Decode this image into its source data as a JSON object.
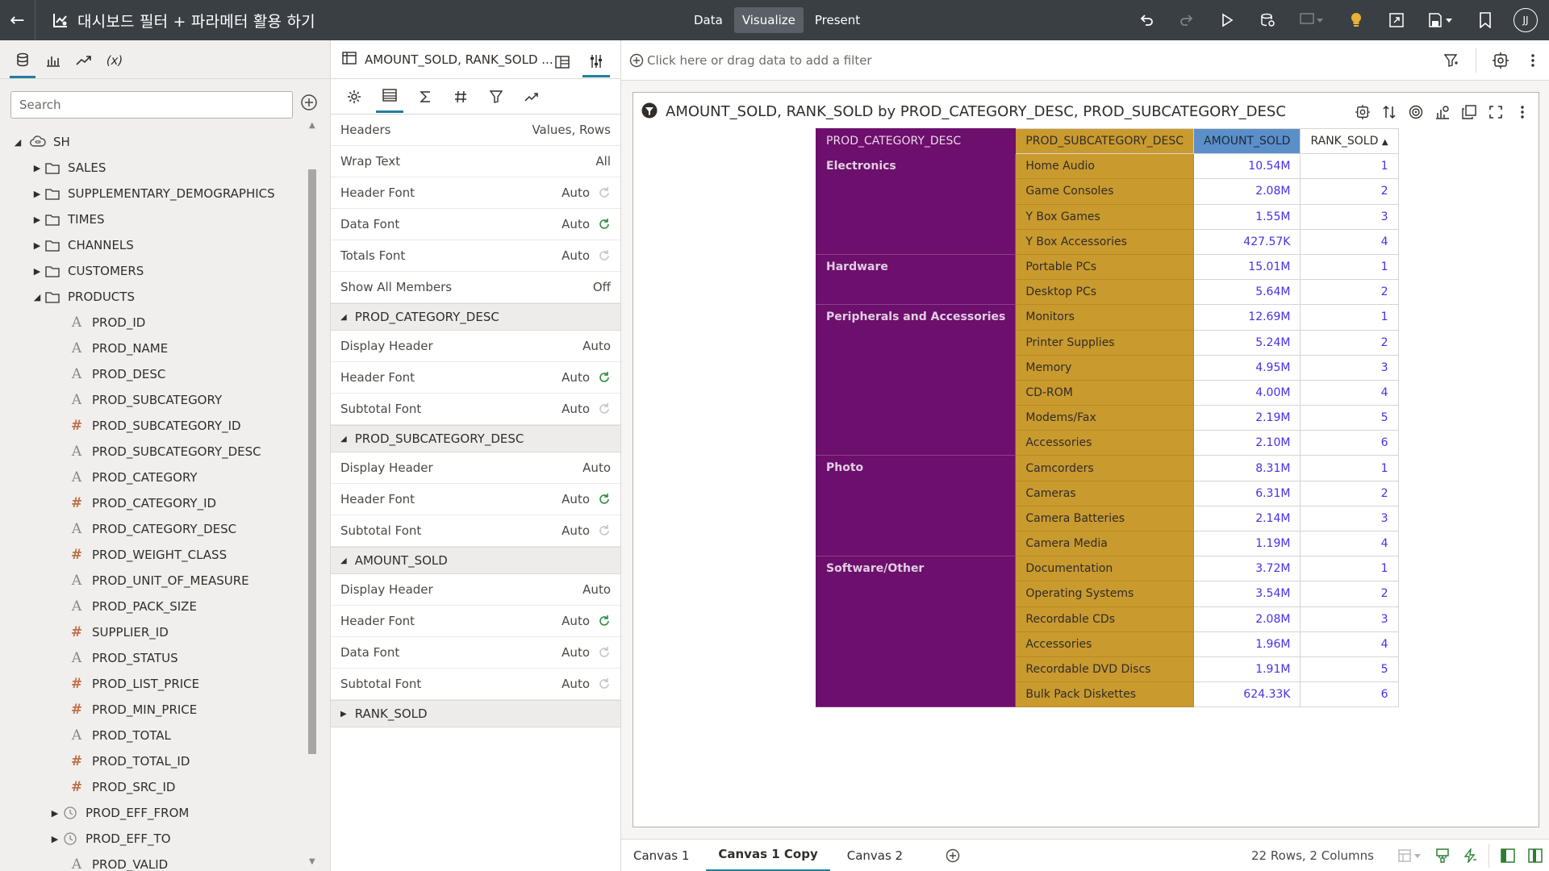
{
  "header": {
    "title": "대시보드 필터 + 파라메터 활용 하기",
    "modes": [
      "Data",
      "Visualize",
      "Present"
    ],
    "active_mode": "Visualize",
    "user_initials": "JJ"
  },
  "data_panel": {
    "search_placeholder": "Search",
    "root": "SH",
    "folders": [
      "SALES",
      "SUPPLEMENTARY_DEMOGRAPHICS",
      "TIMES",
      "CHANNELS",
      "CUSTOMERS",
      "PRODUCTS"
    ],
    "columns": [
      {
        "name": "PROD_ID",
        "kind": "attr"
      },
      {
        "name": "PROD_NAME",
        "kind": "attr"
      },
      {
        "name": "PROD_DESC",
        "kind": "attr"
      },
      {
        "name": "PROD_SUBCATEGORY",
        "kind": "attr"
      },
      {
        "name": "PROD_SUBCATEGORY_ID",
        "kind": "num"
      },
      {
        "name": "PROD_SUBCATEGORY_DESC",
        "kind": "attr"
      },
      {
        "name": "PROD_CATEGORY",
        "kind": "attr"
      },
      {
        "name": "PROD_CATEGORY_ID",
        "kind": "num"
      },
      {
        "name": "PROD_CATEGORY_DESC",
        "kind": "attr"
      },
      {
        "name": "PROD_WEIGHT_CLASS",
        "kind": "num"
      },
      {
        "name": "PROD_UNIT_OF_MEASURE",
        "kind": "attr"
      },
      {
        "name": "PROD_PACK_SIZE",
        "kind": "attr"
      },
      {
        "name": "SUPPLIER_ID",
        "kind": "num"
      },
      {
        "name": "PROD_STATUS",
        "kind": "attr"
      },
      {
        "name": "PROD_LIST_PRICE",
        "kind": "num"
      },
      {
        "name": "PROD_MIN_PRICE",
        "kind": "num"
      },
      {
        "name": "PROD_TOTAL",
        "kind": "attr"
      },
      {
        "name": "PROD_TOTAL_ID",
        "kind": "num"
      },
      {
        "name": "PROD_SRC_ID",
        "kind": "num"
      },
      {
        "name": "PROD_EFF_FROM",
        "kind": "time"
      },
      {
        "name": "PROD_EFF_TO",
        "kind": "time"
      },
      {
        "name": "PROD_VALID",
        "kind": "attr"
      }
    ]
  },
  "properties": {
    "viz_name": "AMOUNT_SOLD, RANK_SOLD ...",
    "general": [
      {
        "label": "Headers",
        "value": "Values, Rows",
        "icon": ""
      },
      {
        "label": "Wrap Text",
        "value": "All",
        "icon": ""
      },
      {
        "label": "Header Font",
        "value": "Auto",
        "icon": "inactive"
      },
      {
        "label": "Data Font",
        "value": "Auto",
        "icon": "active"
      },
      {
        "label": "Totals Font",
        "value": "Auto",
        "icon": "inactive"
      },
      {
        "label": "Show All Members",
        "value": "Off",
        "icon": ""
      }
    ],
    "sections": [
      {
        "title": "PROD_CATEGORY_DESC",
        "expanded": true,
        "rows": [
          {
            "label": "Display Header",
            "value": "Auto",
            "icon": ""
          },
          {
            "label": "Header Font",
            "value": "Auto",
            "icon": "active"
          },
          {
            "label": "Subtotal Font",
            "value": "Auto",
            "icon": "inactive"
          }
        ]
      },
      {
        "title": "PROD_SUBCATEGORY_DESC",
        "expanded": true,
        "rows": [
          {
            "label": "Display Header",
            "value": "Auto",
            "icon": ""
          },
          {
            "label": "Header Font",
            "value": "Auto",
            "icon": "active"
          },
          {
            "label": "Subtotal Font",
            "value": "Auto",
            "icon": "inactive"
          }
        ]
      },
      {
        "title": "AMOUNT_SOLD",
        "expanded": true,
        "rows": [
          {
            "label": "Display Header",
            "value": "Auto",
            "icon": ""
          },
          {
            "label": "Header Font",
            "value": "Auto",
            "icon": "active"
          },
          {
            "label": "Data Font",
            "value": "Auto",
            "icon": "inactive"
          },
          {
            "label": "Subtotal Font",
            "value": "Auto",
            "icon": "inactive"
          }
        ]
      },
      {
        "title": "RANK_SOLD",
        "expanded": false,
        "rows": []
      }
    ]
  },
  "filter_bar": {
    "hint": "Click here or drag data to add a filter"
  },
  "viz": {
    "title": "AMOUNT_SOLD, RANK_SOLD by PROD_CATEGORY_DESC, PROD_SUBCATEGORY_DESC"
  },
  "chart_data": {
    "type": "table",
    "columns": [
      "PROD_CATEGORY_DESC",
      "PROD_SUBCATEGORY_DESC",
      "AMOUNT_SOLD",
      "RANK_SOLD"
    ],
    "groups": [
      {
        "category": "Electronics",
        "rows": [
          [
            "Home Audio",
            "10.54M",
            "1"
          ],
          [
            "Game Consoles",
            "2.08M",
            "2"
          ],
          [
            "Y Box Games",
            "1.55M",
            "3"
          ],
          [
            "Y Box Accessories",
            "427.57K",
            "4"
          ]
        ]
      },
      {
        "category": "Hardware",
        "rows": [
          [
            "Portable PCs",
            "15.01M",
            "1"
          ],
          [
            "Desktop PCs",
            "5.64M",
            "2"
          ]
        ]
      },
      {
        "category": "Peripherals and Accessories",
        "rows": [
          [
            "Monitors",
            "12.69M",
            "1"
          ],
          [
            "Printer Supplies",
            "5.24M",
            "2"
          ],
          [
            "Memory",
            "4.95M",
            "3"
          ],
          [
            "CD-ROM",
            "4.00M",
            "4"
          ],
          [
            "Modems/Fax",
            "2.19M",
            "5"
          ],
          [
            "Accessories",
            "2.10M",
            "6"
          ]
        ]
      },
      {
        "category": "Photo",
        "rows": [
          [
            "Camcorders",
            "8.31M",
            "1"
          ],
          [
            "Cameras",
            "6.31M",
            "2"
          ],
          [
            "Camera Batteries",
            "2.14M",
            "3"
          ],
          [
            "Camera Media",
            "1.19M",
            "4"
          ]
        ]
      },
      {
        "category": "Software/Other",
        "rows": [
          [
            "Documentation",
            "3.72M",
            "1"
          ],
          [
            "Operating Systems",
            "3.54M",
            "2"
          ],
          [
            "Recordable CDs",
            "2.08M",
            "3"
          ],
          [
            "Accessories",
            "1.96M",
            "4"
          ],
          [
            "Recordable DVD Discs",
            "1.91M",
            "5"
          ],
          [
            "Bulk Pack Diskettes",
            "624.33K",
            "6"
          ]
        ]
      }
    ],
    "header_colors": {
      "category": "#6d0f6d",
      "subcategory": "#c99a2e",
      "amount": "#5b8fc9"
    }
  },
  "canvas_tabs": [
    "Canvas 1",
    "Canvas 1 Copy",
    "Canvas 2"
  ],
  "active_canvas": "Canvas 1 Copy",
  "status": {
    "row_count": "22 Rows, 2 Columns"
  }
}
